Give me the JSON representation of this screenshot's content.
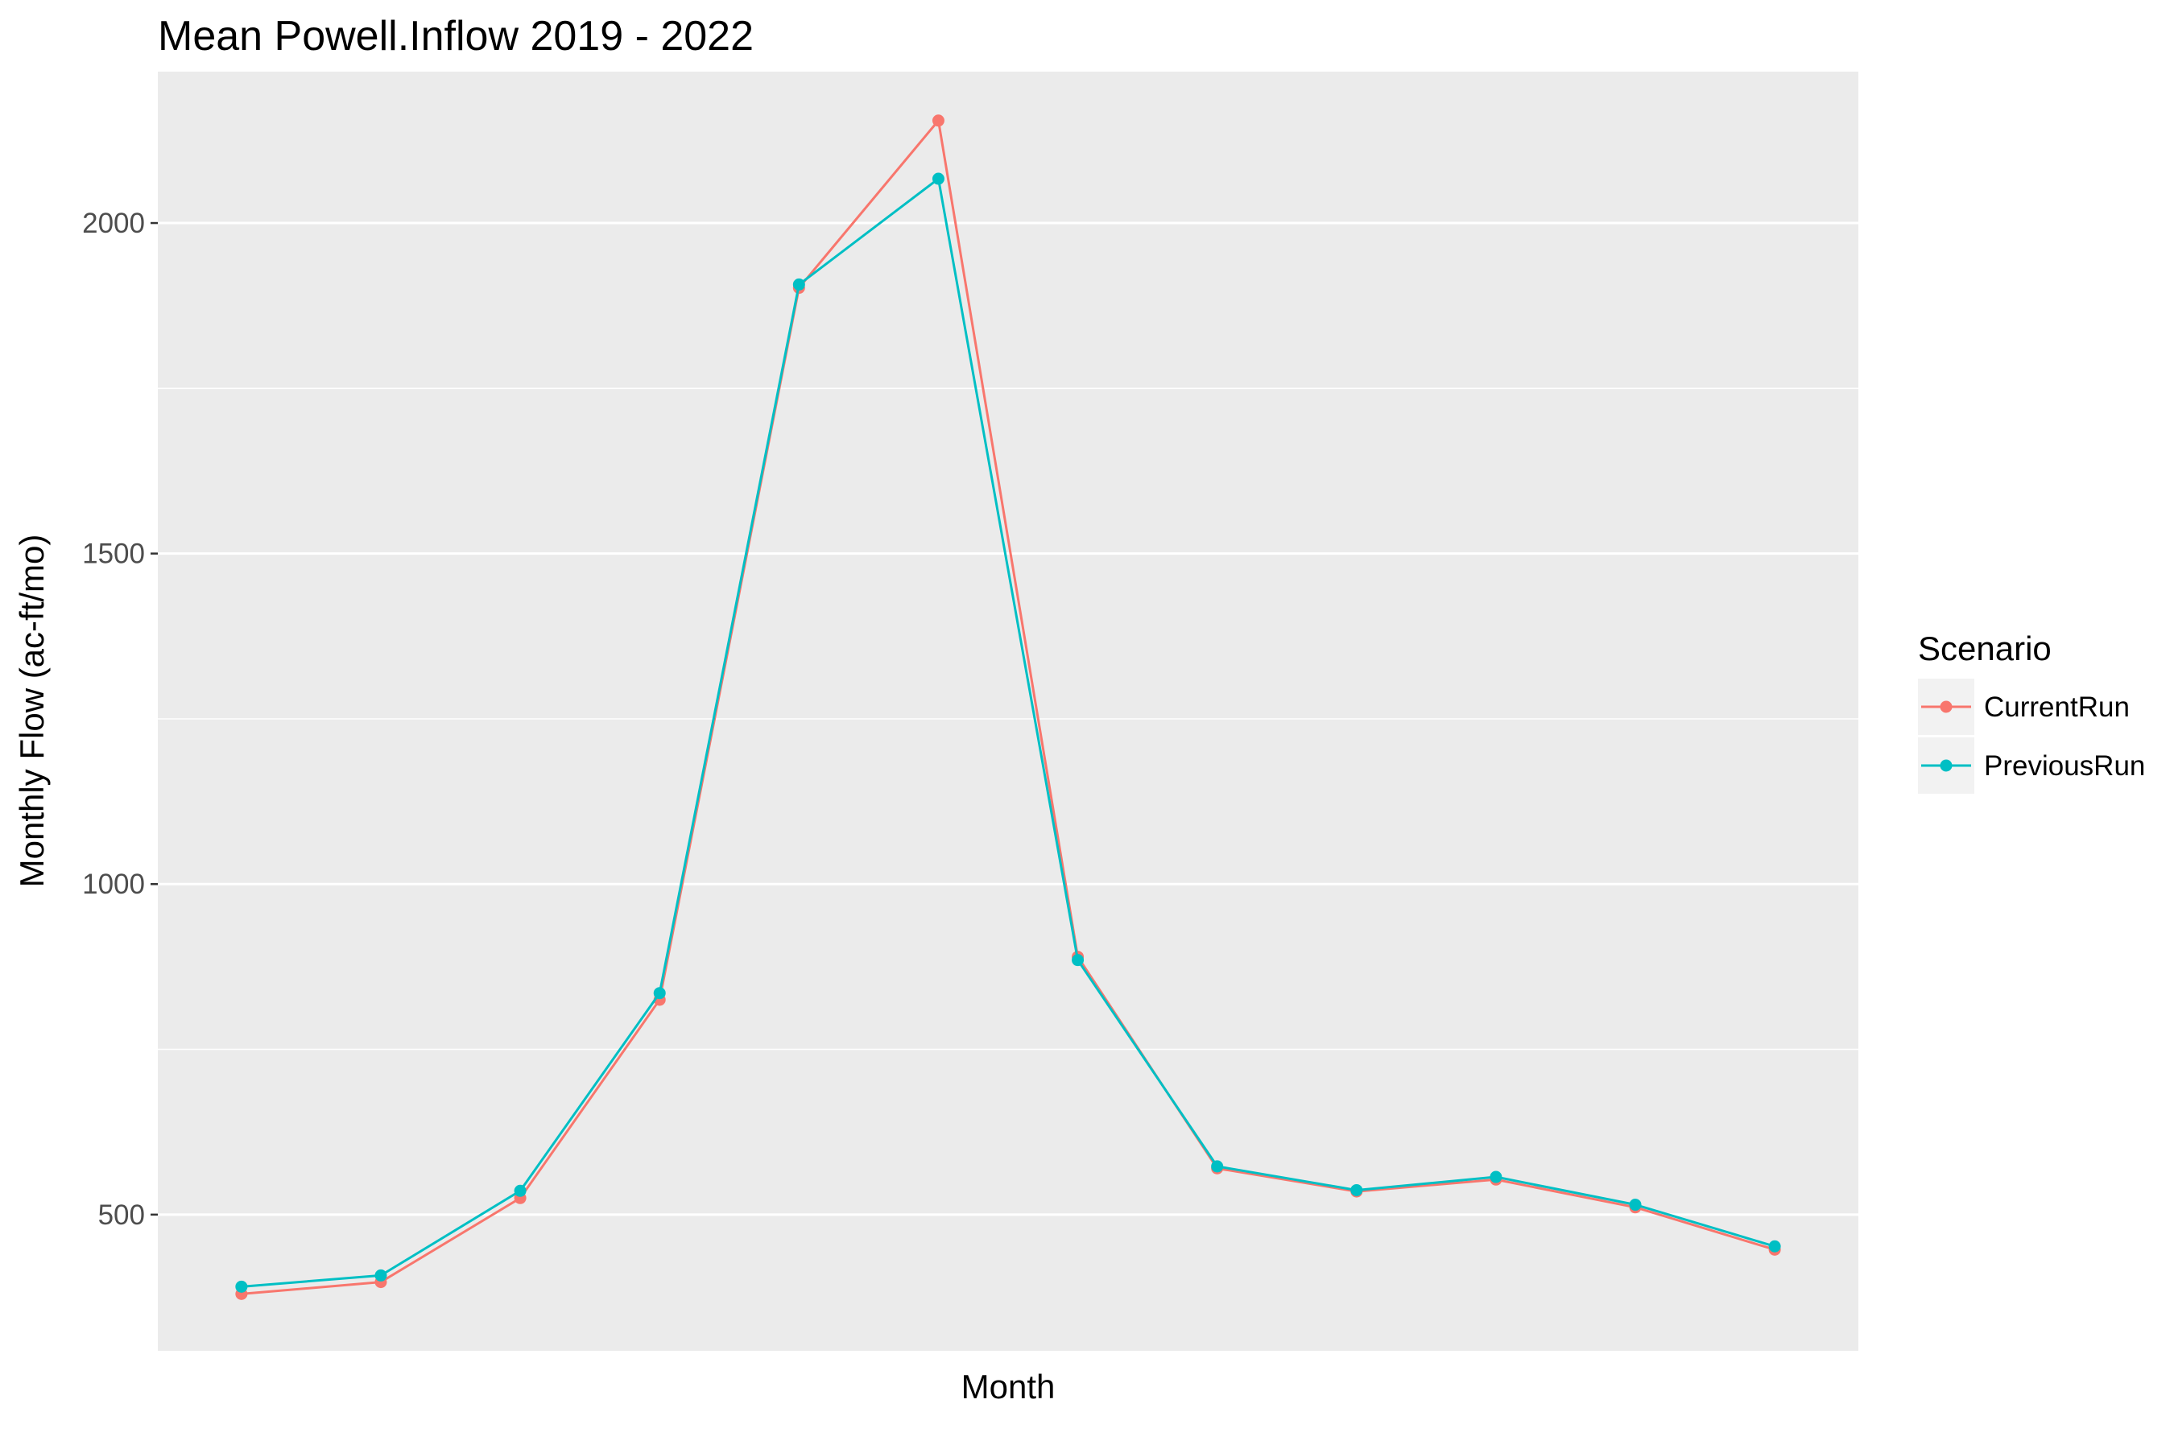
{
  "chart_data": {
    "type": "line",
    "title": "Mean Powell.Inflow 2019 - 2022",
    "xlabel": "Month",
    "ylabel": "Monthly Flow (ac-ft/mo)",
    "x_tick_labels": [],
    "y_ticks": [
      500,
      1000,
      1500,
      2000
    ],
    "y_tick_labels": [
      "500",
      "1000",
      "1500",
      "2000"
    ],
    "ylim": [
      294,
      2229
    ],
    "xlim": [
      0.4,
      12.6
    ],
    "grid": true,
    "legend_title": "Scenario",
    "legend_position": "right",
    "x": [
      1,
      2,
      3,
      4,
      5,
      6,
      7,
      8,
      9,
      10,
      11,
      12
    ],
    "series": [
      {
        "name": "CurrentRun",
        "color": "#F8766D",
        "values": [
          380,
          398,
          525,
          825,
          1902,
          2155,
          890,
          570,
          535,
          553,
          511,
          447
        ]
      },
      {
        "name": "PreviousRun",
        "color": "#00BFC4",
        "values": [
          391,
          408,
          536,
          835,
          1907,
          2067,
          885,
          573,
          537,
          557,
          515,
          452
        ]
      }
    ]
  }
}
